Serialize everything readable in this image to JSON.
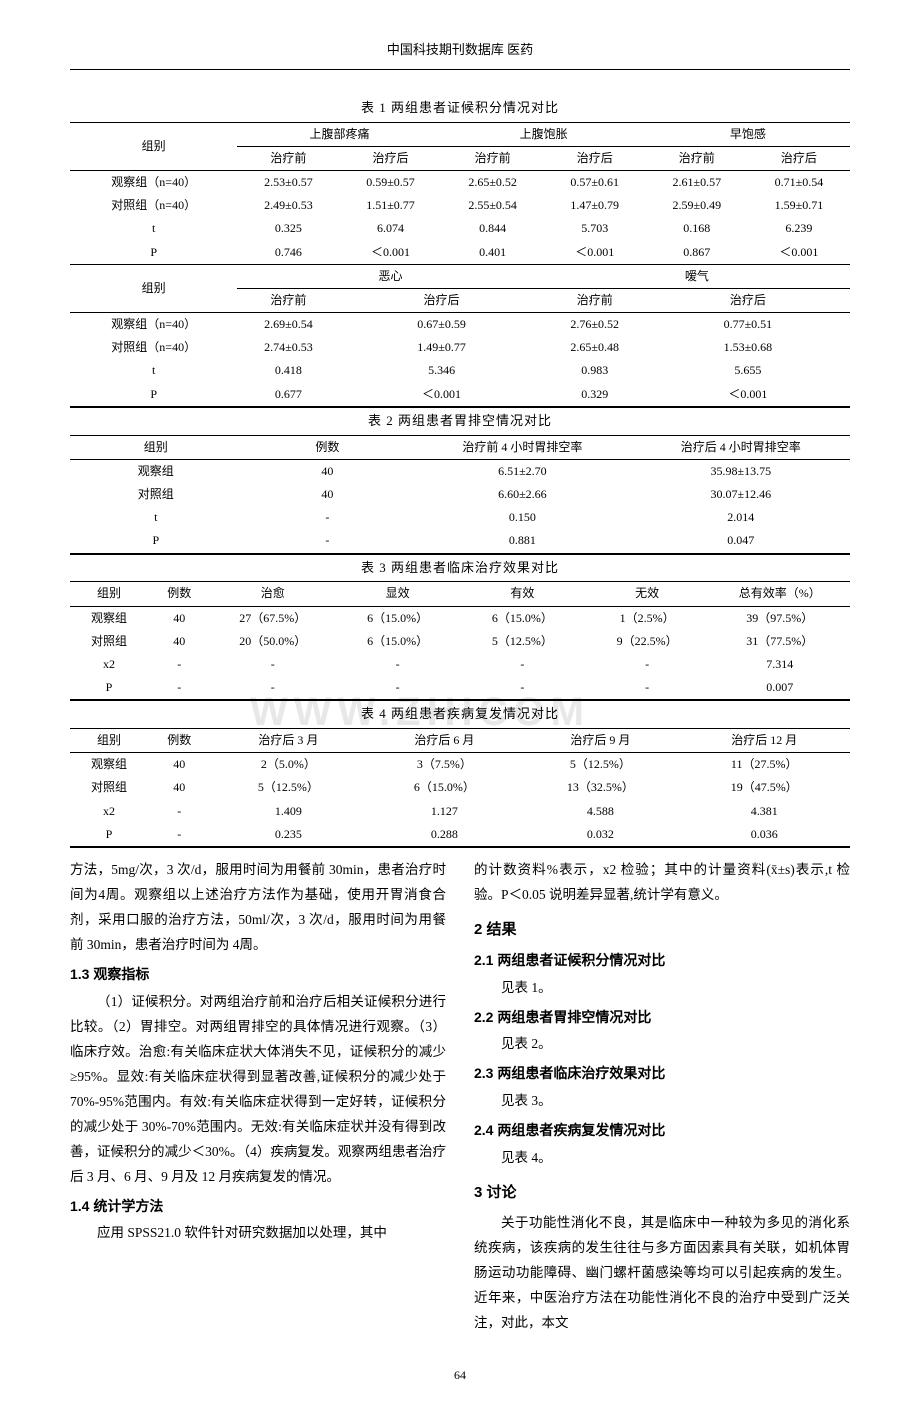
{
  "header": "中国科技期刊数据库 医药",
  "page_number": "64",
  "watermark": "WWW.ZHICOM",
  "table1": {
    "title": "表 1  两组患者证候积分情况对比",
    "header_group": "组别",
    "metrics_a": [
      "上腹部疼痛",
      "上腹饱胀",
      "早饱感"
    ],
    "metrics_b": [
      "恶心",
      "嗳气"
    ],
    "subhead_pre": "治疗前",
    "subhead_post": "治疗后",
    "rows_a": [
      {
        "label": "观察组（n=40）",
        "vals": [
          "2.53±0.57",
          "0.59±0.57",
          "2.65±0.52",
          "0.57±0.61",
          "2.61±0.57",
          "0.71±0.54"
        ]
      },
      {
        "label": "对照组（n=40）",
        "vals": [
          "2.49±0.53",
          "1.51±0.77",
          "2.55±0.54",
          "1.47±0.79",
          "2.59±0.49",
          "1.59±0.71"
        ]
      },
      {
        "label": "t",
        "vals": [
          "0.325",
          "6.074",
          "0.844",
          "5.703",
          "0.168",
          "6.239"
        ]
      },
      {
        "label": "P",
        "vals": [
          "0.746",
          "＜0.001",
          "0.401",
          "＜0.001",
          "0.867",
          "＜0.001"
        ]
      }
    ],
    "rows_b": [
      {
        "label": "观察组（n=40）",
        "vals": [
          "2.69±0.54",
          "0.67±0.59",
          "2.76±0.52",
          "0.77±0.51"
        ]
      },
      {
        "label": "对照组（n=40）",
        "vals": [
          "2.74±0.53",
          "1.49±0.77",
          "2.65±0.48",
          "1.53±0.68"
        ]
      },
      {
        "label": "t",
        "vals": [
          "0.418",
          "5.346",
          "0.983",
          "5.655"
        ]
      },
      {
        "label": "P",
        "vals": [
          "0.677",
          "＜0.001",
          "0.329",
          "＜0.001"
        ]
      }
    ]
  },
  "table2": {
    "title": "表 2  两组患者胃排空情况对比",
    "cols": [
      "组别",
      "例数",
      "治疗前 4 小时胃排空率",
      "治疗后 4 小时胃排空率"
    ],
    "rows": [
      {
        "vals": [
          "观察组",
          "40",
          "6.51±2.70",
          "35.98±13.75"
        ]
      },
      {
        "vals": [
          "对照组",
          "40",
          "6.60±2.66",
          "30.07±12.46"
        ]
      },
      {
        "vals": [
          "t",
          "-",
          "0.150",
          "2.014"
        ]
      },
      {
        "vals": [
          "P",
          "-",
          "0.881",
          "0.047"
        ]
      }
    ]
  },
  "table3": {
    "title": "表 3  两组患者临床治疗效果对比",
    "cols": [
      "组别",
      "例数",
      "治愈",
      "显效",
      "有效",
      "无效",
      "总有效率（%）"
    ],
    "rows": [
      {
        "vals": [
          "观察组",
          "40",
          "27（67.5%）",
          "6（15.0%）",
          "6（15.0%）",
          "1（2.5%）",
          "39（97.5%）"
        ]
      },
      {
        "vals": [
          "对照组",
          "40",
          "20（50.0%）",
          "6（15.0%）",
          "5（12.5%）",
          "9（22.5%）",
          "31（77.5%）"
        ]
      },
      {
        "vals": [
          "x2",
          "-",
          "-",
          "-",
          "-",
          "-",
          "7.314"
        ]
      },
      {
        "vals": [
          "P",
          "-",
          "-",
          "-",
          "-",
          "-",
          "0.007"
        ]
      }
    ]
  },
  "table4": {
    "title": "表 4  两组患者疾病复发情况对比",
    "cols": [
      "组别",
      "例数",
      "治疗后 3 月",
      "治疗后 6 月",
      "治疗后 9 月",
      "治疗后 12 月"
    ],
    "rows": [
      {
        "vals": [
          "观察组",
          "40",
          "2（5.0%）",
          "3（7.5%）",
          "5（12.5%）",
          "11（27.5%）"
        ]
      },
      {
        "vals": [
          "对照组",
          "40",
          "5（12.5%）",
          "6（15.0%）",
          "13（32.5%）",
          "19（47.5%）"
        ]
      },
      {
        "vals": [
          "x2",
          "-",
          "1.409",
          "1.127",
          "4.588",
          "4.381"
        ]
      },
      {
        "vals": [
          "P",
          "-",
          "0.235",
          "0.288",
          "0.032",
          "0.036"
        ]
      }
    ]
  },
  "body": {
    "left": {
      "p1": "方法，5mg/次，3 次/d，服用时间为用餐前 30min，患者治疗时间为4周。观察组以上述治疗方法作为基础，使用开胃消食合剂，采用口服的治疗方法，50ml/次，3 次/d，服用时间为用餐前 30min，患者治疗时间为 4周。",
      "h13": "1.3 观察指标",
      "p2": "（1）证候积分。对两组治疗前和治疗后相关证候积分进行比较。（2）胃排空。对两组胃排空的具体情况进行观察。（3）临床疗效。治愈:有关临床症状大体消失不见，证候积分的减少≥95%。显效:有关临床症状得到显著改善,证候积分的减少处于 70%-95%范围内。有效:有关临床症状得到一定好转，证候积分的减少处于 30%-70%范围内。无效:有关临床症状并没有得到改善，证候积分的减少＜30%。（4）疾病复发。观察两组患者治疗后 3 月、6 月、9 月及 12 月疾病复发的情况。",
      "h14": "1.4 统计学方法",
      "p3": "应用 SPSS21.0 软件针对研究数据加以处理，其中"
    },
    "right": {
      "p1": "的计数资料%表示，x2 检验；其中的计量资料(x̄±s)表示,t 检验。P＜0.05 说明差异显著,统计学有意义。",
      "h2": "2 结果",
      "h21": "2.1 两组患者证候积分情况对比",
      "p21": "见表 1。",
      "h22": "2.2 两组患者胃排空情况对比",
      "p22": "见表 2。",
      "h23": "2.3 两组患者临床治疗效果对比",
      "p23": "见表 3。",
      "h24": "2.4 两组患者疾病复发情况对比",
      "p24": "见表 4。",
      "h3": "3 讨论",
      "p3": "关于功能性消化不良，其是临床中一种较为多见的消化系统疾病，该疾病的发生往往与多方面因素具有关联，如机体胃肠运动功能障碍、幽门螺杆菌感染等均可以引起疾病的发生。近年来，中医治疗方法在功能性消化不良的治疗中受到广泛关注，对此，本文"
    }
  }
}
